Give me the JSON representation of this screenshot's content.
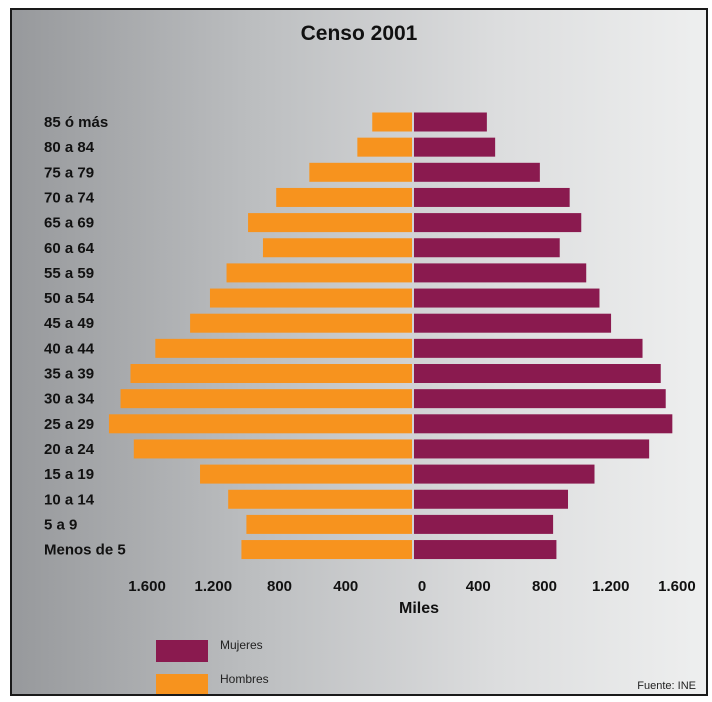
{
  "chart_data": {
    "type": "bar",
    "title": "Censo 2001",
    "xlabel": "Miles",
    "ylabel": "",
    "xlim": [
      -1800,
      1650
    ],
    "x_tick_labels": [
      "1.600",
      "1.200",
      "800",
      "400",
      "0",
      "400",
      "800",
      "1.200",
      "1.600"
    ],
    "x_tick_values": [
      -1600,
      -1200,
      -800,
      -400,
      0,
      400,
      800,
      1200,
      1600
    ],
    "categories": [
      "85 ó más",
      "80 a 84",
      "75 a 79",
      "70 a 74",
      "65 a 69",
      "60 a 64",
      "55 a 59",
      "50 a 54",
      "45 a 49",
      "40 a 44",
      "35 a 39",
      "30 a 34",
      "25 a 29",
      "20 a 24",
      "15 a 19",
      "10 a 14",
      "5 a 9",
      "Menos de 5"
    ],
    "series": [
      {
        "name": "Mujeres",
        "color": "#8a1a4f",
        "values": [
          440,
          490,
          760,
          940,
          1010,
          880,
          1040,
          1120,
          1190,
          1380,
          1490,
          1520,
          1560,
          1420,
          1090,
          930,
          840,
          860
        ]
      },
      {
        "name": "Hombres",
        "color": "#f7931e",
        "values": [
          240,
          330,
          620,
          820,
          990,
          900,
          1120,
          1220,
          1340,
          1550,
          1700,
          1760,
          1830,
          1680,
          1280,
          1110,
          1000,
          1030
        ]
      }
    ],
    "legend_position": "bottom-left",
    "grid": false
  },
  "source_note": "Fuente: INE"
}
